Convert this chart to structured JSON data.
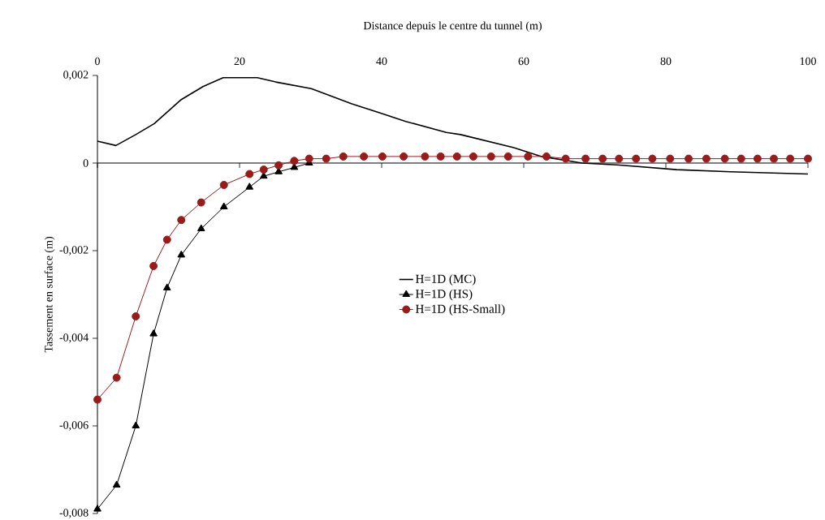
{
  "chart_data": {
    "type": "line",
    "xlabel": "Distance depuis le centre du tunnel (m)",
    "ylabel": "Tassement en surface (m)",
    "xlim": [
      0,
      100
    ],
    "ylim": [
      -0.008,
      0.002
    ],
    "xticks": [
      0,
      20,
      40,
      60,
      80,
      100
    ],
    "yticks": [
      {
        "value": -0.008,
        "label": "-0,008"
      },
      {
        "value": -0.006,
        "label": "-0,006"
      },
      {
        "value": -0.004,
        "label": "-0,004"
      },
      {
        "value": -0.002,
        "label": "-0,002"
      },
      0,
      {
        "value": 0.002,
        "label": "0,002"
      }
    ],
    "legend": "center",
    "series": [
      {
        "name": "H=1D (MC)",
        "color": "#000000",
        "marker": "none",
        "x": [
          0,
          2.6,
          5.4,
          8,
          11.8,
          14.9,
          17.7,
          22.5,
          25.1,
          30.1,
          35.8,
          39.7,
          43.4,
          49.1,
          51.1,
          58.6,
          62.5,
          68.2,
          73.9,
          81.5,
          89.1,
          100
        ],
        "values": [
          0.0005,
          0.0004,
          0.00065,
          0.0009,
          0.00145,
          0.00175,
          0.00195,
          0.00195,
          0.00185,
          0.0017,
          0.00135,
          0.00115,
          0.00095,
          0.0007,
          0.00065,
          0.00035,
          0.00015,
          0,
          -5e-05,
          -0.00015,
          -0.0002,
          -0.00025
        ]
      },
      {
        "name": "H=1D (HS)",
        "color": "#000000",
        "marker": "triangle",
        "x": [
          0,
          2.7,
          5.4,
          7.9,
          9.8,
          11.8,
          14.6,
          17.8,
          21.4,
          23.4,
          25.5,
          27.7,
          29.8
        ],
        "values": [
          -0.0079,
          -0.00735,
          -0.006,
          -0.0039,
          -0.00285,
          -0.0021,
          -0.0015,
          -0.001,
          -0.00055,
          -0.0003,
          -0.0002,
          -0.0001,
          0
        ]
      },
      {
        "name": "H=1D (HS-Small)",
        "color": "#9b1b1b",
        "marker": "circle",
        "x": [
          0,
          2.7,
          5.4,
          7.9,
          9.8,
          11.8,
          14.6,
          17.8,
          21.4,
          23.4,
          25.5,
          27.7,
          29.8,
          32.2,
          34.6,
          37.5,
          40.1,
          43.1,
          46.1,
          48.3,
          50.6,
          52.9,
          55.4,
          57.8,
          60.6,
          63.2,
          65.9,
          68.7,
          71.1,
          73.4,
          75.8,
          78.1,
          80.6,
          83.2,
          85.7,
          88.3,
          90.6,
          92.9,
          95.2,
          97.5,
          100
        ],
        "values": [
          -0.0054,
          -0.0049,
          -0.0035,
          -0.00235,
          -0.00175,
          -0.0013,
          -0.0009,
          -0.0005,
          -0.00025,
          -0.00015,
          -5e-05,
          5e-05,
          0.0001,
          0.0001,
          0.00015,
          0.00015,
          0.00015,
          0.00015,
          0.00015,
          0.00015,
          0.00015,
          0.00015,
          0.00015,
          0.00015,
          0.00015,
          0.00015,
          0.0001,
          0.0001,
          0.0001,
          0.0001,
          0.0001,
          0.0001,
          0.0001,
          0.0001,
          0.0001,
          0.0001,
          0.0001,
          0.0001,
          0.0001,
          0.0001,
          0.0001
        ]
      }
    ]
  }
}
